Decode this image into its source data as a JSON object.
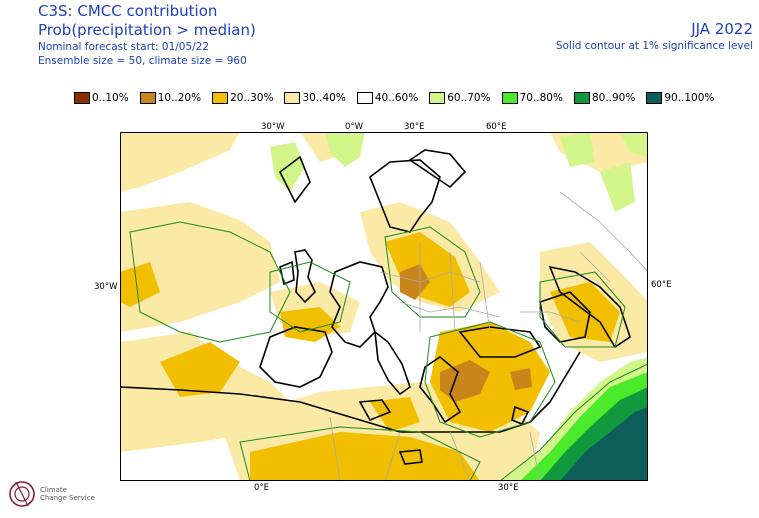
{
  "header": {
    "title": "C3S: CMCC contribution",
    "subtitle": "Prob(precipitation > median)",
    "forecast_start": "Nominal forecast start: 01/05/22",
    "ensemble": "Ensemble size = 50, climate size = 960"
  },
  "header_right": {
    "season": "JJA 2022",
    "contour_note": "Solid contour at 1% significance level"
  },
  "legend": [
    {
      "label": "0..10%",
      "color": "#8b2e00"
    },
    {
      "label": "10..20%",
      "color": "#c8861a"
    },
    {
      "label": "20..30%",
      "color": "#f2be00"
    },
    {
      "label": "30..40%",
      "color": "#fbe9a6"
    },
    {
      "label": "40..60%",
      "color": "#ffffff"
    },
    {
      "label": "60..70%",
      "color": "#d2f68a"
    },
    {
      "label": "70..80%",
      "color": "#4bea2b"
    },
    {
      "label": "80..90%",
      "color": "#11993e"
    },
    {
      "label": "90..100%",
      "color": "#0d5e58"
    }
  ],
  "axis_labels": {
    "top": [
      "30°W",
      "0°W",
      "30°E",
      "60°E"
    ],
    "left": "30°W",
    "right": "60°E",
    "bottom": [
      "0°E",
      "30°E"
    ]
  },
  "logo": {
    "line1": "Climate",
    "line2": "Change Service"
  }
}
